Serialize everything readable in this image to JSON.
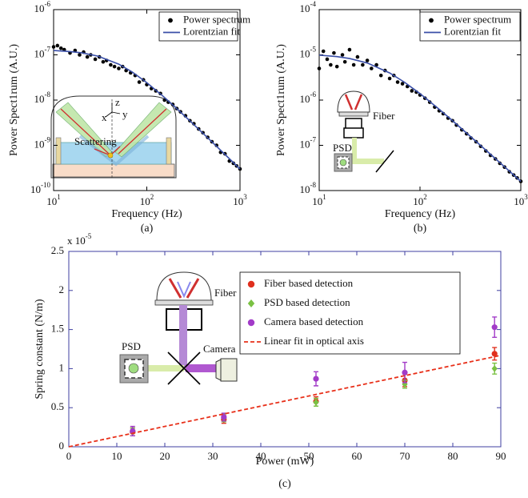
{
  "chart_data": [
    {
      "type": "scatter",
      "xscale": "log",
      "yscale": "log",
      "xlabel": "Frequency (Hz)",
      "ylabel": "Power Spect1rum (A.U.)",
      "caption": "(a)",
      "xlim": [
        10,
        1000
      ],
      "ylim": [
        1e-10,
        1e-06
      ],
      "xticks": [
        {
          "value": 10,
          "label": "10",
          "exp": "1"
        },
        {
          "value": 100,
          "label": "10",
          "exp": "2"
        },
        {
          "value": 1000,
          "label": "10",
          "exp": "3"
        }
      ],
      "yticks": [
        {
          "value": 1e-10,
          "label": "10",
          "exp": "-10"
        },
        {
          "value": 1e-09,
          "label": "10",
          "exp": "-9"
        },
        {
          "value": 1e-08,
          "label": "10",
          "exp": "-8"
        },
        {
          "value": 1e-07,
          "label": "10",
          "exp": "-7"
        },
        {
          "value": 1e-06,
          "label": "10",
          "exp": "-6"
        }
      ],
      "legend": "upper right",
      "frame_color": "#000000",
      "inset_labels": [
        "Scattering",
        "x",
        "y",
        "z"
      ],
      "series": [
        {
          "name": "Power spectrum",
          "kind": "scatter",
          "marker": "circle",
          "color": "#000000",
          "x": [
            10,
            11,
            12,
            13,
            15,
            17,
            19,
            21,
            23,
            25,
            28,
            31,
            34,
            37,
            41,
            45,
            50,
            55,
            60,
            67,
            75,
            83,
            92,
            100,
            112,
            125,
            140,
            155,
            170,
            190,
            210,
            230,
            260,
            290,
            320,
            360,
            400,
            450,
            500,
            560,
            620,
            690,
            770,
            850,
            920,
            1000
          ],
          "values": [
            1.5e-07,
            1.6e-07,
            1.4e-07,
            1.3e-07,
            1.1e-07,
            1.25e-07,
            1e-07,
            1.15e-07,
            9e-08,
            1e-07,
            8e-08,
            9e-08,
            7e-08,
            7.5e-08,
            6e-08,
            5.5e-08,
            5e-08,
            5.5e-08,
            4.5e-08,
            4e-08,
            3.5e-08,
            2.5e-08,
            2.8e-08,
            2.2e-08,
            1.8e-08,
            1.6e-08,
            1.4e-08,
            1e-08,
            9e-09,
            8e-09,
            6.5e-09,
            5.5e-09,
            4.5e-09,
            3.5e-09,
            3e-09,
            2.3e-09,
            1.9e-09,
            1.5e-09,
            1.2e-09,
            1e-09,
            7e-10,
            6.5e-10,
            4.5e-10,
            4e-10,
            3.5e-10,
            3e-10
          ]
        },
        {
          "name": "Lorentzian fit",
          "kind": "line",
          "color": "#3a4fa8",
          "x": [
            10,
            15,
            20,
            30,
            50,
            70,
            100,
            150,
            200,
            300,
            500,
            700,
            1000
          ],
          "values": [
            1.25e-07,
            1.18e-07,
            1.11e-07,
            9.35e-08,
            6.23e-08,
            4.16e-08,
            2.43e-08,
            1.21e-08,
            7.1e-09,
            3.25e-09,
            1.19e-09,
            6.1e-10,
            3e-10
          ]
        }
      ]
    },
    {
      "type": "scatter",
      "xscale": "log",
      "yscale": "log",
      "xlabel": "Frequency (Hz)",
      "ylabel": "Power Spect1rum (A.U.)",
      "caption": "(b)",
      "xlim": [
        10,
        1000
      ],
      "ylim": [
        1e-08,
        0.0001
      ],
      "xticks": [
        {
          "value": 10,
          "label": "10",
          "exp": "1"
        },
        {
          "value": 100,
          "label": "10",
          "exp": "2"
        },
        {
          "value": 1000,
          "label": "10",
          "exp": "3"
        }
      ],
      "yticks": [
        {
          "value": 1e-08,
          "label": "10",
          "exp": "-8"
        },
        {
          "value": 1e-07,
          "label": "10",
          "exp": "-7"
        },
        {
          "value": 1e-06,
          "label": "10",
          "exp": "-6"
        },
        {
          "value": 1e-05,
          "label": "10",
          "exp": "-5"
        },
        {
          "value": 0.0001,
          "label": "10",
          "exp": "-4"
        }
      ],
      "legend": "upper right",
      "frame_color": "#000000",
      "inset_labels": [
        "Fiber",
        "PSD"
      ],
      "series": [
        {
          "name": "Power spectrum",
          "kind": "scatter",
          "marker": "circle",
          "color": "#000000",
          "x": [
            10,
            11,
            12,
            13,
            14,
            15,
            17,
            18,
            20,
            22,
            24,
            27,
            30,
            33,
            37,
            41,
            45,
            50,
            55,
            60,
            67,
            75,
            83,
            92,
            100,
            112,
            125,
            140,
            155,
            170,
            190,
            210,
            230,
            260,
            290,
            320,
            360,
            400,
            450,
            500,
            560,
            620,
            690,
            770,
            850,
            920,
            1000
          ],
          "values": [
            5e-06,
            1.2e-05,
            8e-06,
            6e-06,
            1.1e-05,
            5.5e-06,
            1e-05,
            7e-06,
            1.3e-05,
            6e-06,
            9e-06,
            6e-06,
            7.5e-06,
            5e-06,
            6e-06,
            3.5e-06,
            4.5e-06,
            3e-06,
            3.5e-06,
            2.5e-06,
            2.3e-06,
            2e-06,
            1.6e-06,
            1.5e-06,
            1.3e-06,
            1.1e-06,
            9e-07,
            7e-07,
            5.8e-07,
            5e-07,
            4e-07,
            3.5e-07,
            2.8e-07,
            2.2e-07,
            1.8e-07,
            1.45e-07,
            1.2e-07,
            9.5e-08,
            7.5e-08,
            6e-08,
            5e-08,
            4e-08,
            3.3e-08,
            2.6e-08,
            2.2e-08,
            1.9e-08,
            1.6e-08
          ]
        },
        {
          "name": "Lorentzian fit",
          "kind": "line",
          "color": "#3a4fa8",
          "x": [
            10,
            15,
            20,
            30,
            50,
            70,
            100,
            150,
            200,
            300,
            500,
            700,
            1000
          ],
          "values": [
            9.85e-06,
            9.15e-06,
            8.31e-06,
            6.6e-06,
            3.98e-06,
            2.49e-06,
            1.39e-06,
            6.65e-07,
            3.85e-07,
            1.74e-07,
            6.36e-08,
            3.25e-08,
            1.6e-08
          ]
        }
      ]
    },
    {
      "type": "scatter",
      "xscale": "linear",
      "yscale": "linear",
      "xlabel": "Power (mW)",
      "ylabel": "Spring constant (N/m)",
      "caption": "(c)",
      "y_multiplier": {
        "label": "x 10",
        "exp": "-5"
      },
      "xlim": [
        0,
        90
      ],
      "ylim": [
        0,
        2.5
      ],
      "xticks": [
        0,
        10,
        20,
        30,
        40,
        50,
        60,
        70,
        80,
        90
      ],
      "yticks": [
        0,
        0.5,
        1,
        1.5,
        2,
        2.5
      ],
      "legend": "upper right",
      "frame_color": "#3f3fa0",
      "inset_labels": [
        "Fiber",
        "PSD",
        "Camera"
      ],
      "series": [
        {
          "name": "Fiber based detection",
          "kind": "errorbar",
          "marker": "circle",
          "color": "#e0301e",
          "x": [
            13.3,
            32.3,
            51.5,
            70,
            88.7
          ],
          "values": [
            0.19,
            0.35,
            0.58,
            0.85,
            1.19
          ],
          "errors": [
            0.05,
            0.05,
            0.06,
            0.08,
            0.08
          ]
        },
        {
          "name": "PSD based detection",
          "kind": "errorbar",
          "marker": "diamond",
          "color": "#7ac143",
          "x": [
            13.3,
            32.3,
            51.5,
            70,
            88.7
          ],
          "values": [
            0.19,
            0.37,
            0.57,
            0.8,
            1.0
          ],
          "errors": [
            0.05,
            0.05,
            0.05,
            0.05,
            0.07
          ]
        },
        {
          "name": "Camera based detection",
          "kind": "errorbar",
          "marker": "circle",
          "color": "#a23bc8",
          "x": [
            13.3,
            32.3,
            51.5,
            70,
            88.7
          ],
          "values": [
            0.2,
            0.38,
            0.87,
            0.95,
            1.53
          ],
          "errors": [
            0.06,
            0.05,
            0.09,
            0.13,
            0.13
          ]
        },
        {
          "name": "Linear fit in optical axis",
          "kind": "dashed",
          "color": "#e8301a",
          "x": [
            0,
            90
          ],
          "values": [
            0,
            1.17
          ]
        }
      ]
    }
  ]
}
